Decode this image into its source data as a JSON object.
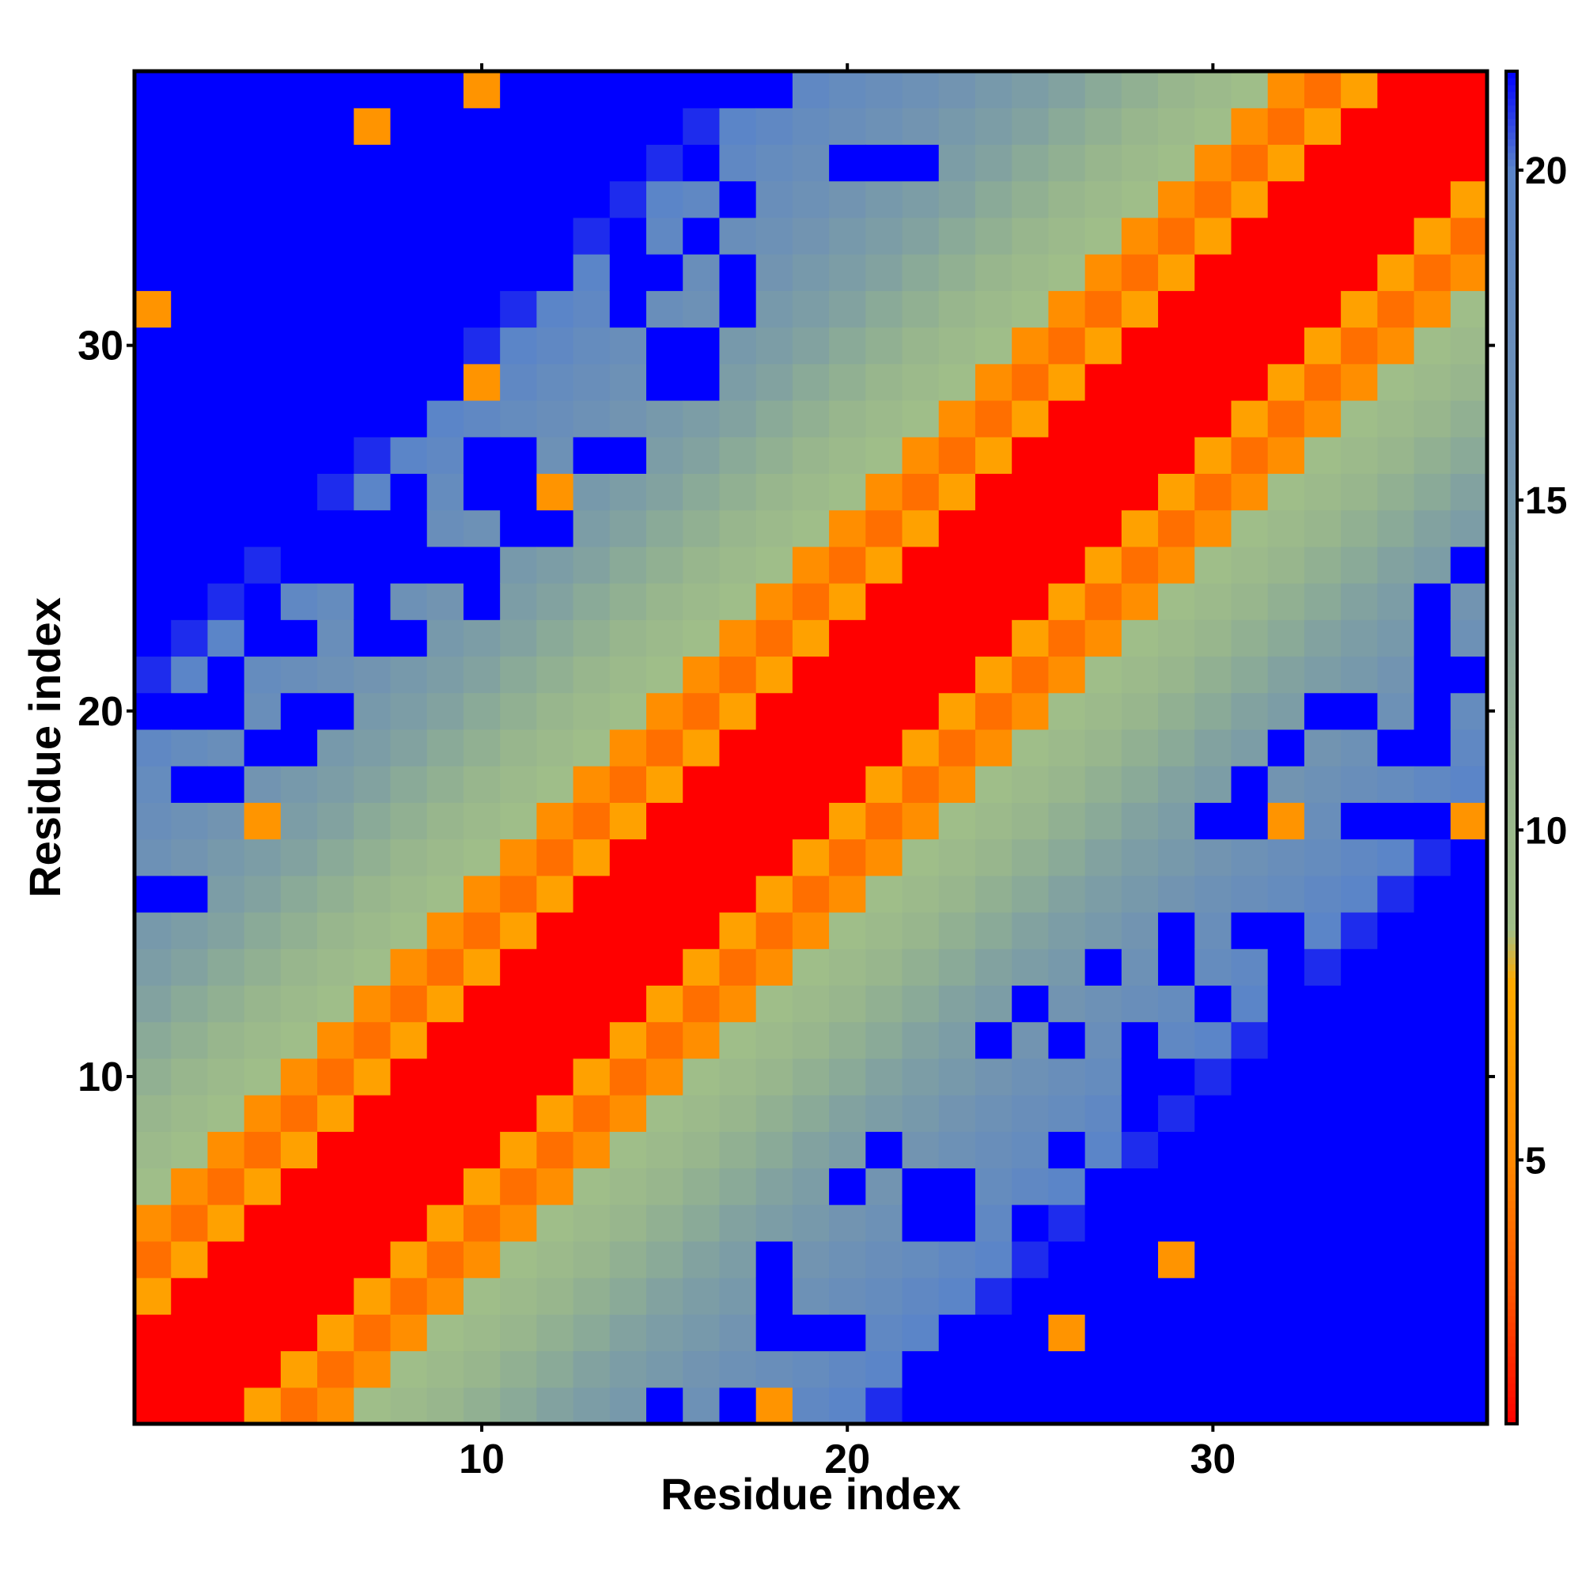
{
  "chart_data": {
    "type": "heatmap",
    "title": "",
    "xlabel": "Residue index",
    "ylabel": "Residue index",
    "n": 37,
    "xlim": [
      0.5,
      37.5
    ],
    "ylim": [
      0.5,
      37.5
    ],
    "x_ticks": [
      10,
      20,
      30
    ],
    "x_tick_labels": [
      "10",
      "20",
      "30"
    ],
    "y_ticks": [
      10,
      20,
      30
    ],
    "y_tick_labels": [
      "10",
      "20",
      "30"
    ],
    "colorbar": {
      "range": [
        1,
        21.5
      ],
      "ticks": [
        5,
        10,
        15,
        20
      ],
      "tick_labels": [
        "5",
        "10",
        "15",
        "20"
      ],
      "gradient": [
        {
          "value": 1.0,
          "color": "#ff0000"
        },
        {
          "value": 3.0,
          "color": "#ff5500"
        },
        {
          "value": 5.0,
          "color": "#ff8800"
        },
        {
          "value": 7.7,
          "color": "#ffaa00"
        },
        {
          "value": 8.5,
          "color": "#a0bf88"
        },
        {
          "value": 11.0,
          "color": "#96b48e"
        },
        {
          "value": 13.5,
          "color": "#7fa0a2"
        },
        {
          "value": 16.0,
          "color": "#6f92b4"
        },
        {
          "value": 20.0,
          "color": "#5b85c8"
        },
        {
          "value": 21.5,
          "color": "#0000ff"
        }
      ]
    },
    "grid": false,
    "legend": "colorbar-right",
    "distance_model": {
      "description": "Residue-residue distance map; values estimated from the color scale",
      "diagonal_band": [
        {
          "offset": 0,
          "value": 1.0
        },
        {
          "offset": 1,
          "value": 1.0
        },
        {
          "offset": 2,
          "value": 1.0
        },
        {
          "offset": 3,
          "value": 7.0
        },
        {
          "offset": 4,
          "value": 4.0
        },
        {
          "offset": 5,
          "value": 5.5
        },
        {
          "offset": 6,
          "value": 8.8
        },
        {
          "offset": 7,
          "value": 9.6
        },
        {
          "offset": 8,
          "value": 10.5
        },
        {
          "offset": 9,
          "value": 11.5
        },
        {
          "offset": 10,
          "value": 12.3
        },
        {
          "offset": 11,
          "value": 13.2
        },
        {
          "offset": 12,
          "value": 14.0
        },
        {
          "offset": 13,
          "value": 14.8
        },
        {
          "offset": 14,
          "value": 15.6
        },
        {
          "offset": 15,
          "value": 16.4
        },
        {
          "offset": 16,
          "value": 17.2
        },
        {
          "offset": 17,
          "value": 18.0
        },
        {
          "offset": 18,
          "value": 19.0
        },
        {
          "offset": 19,
          "value": 20.0
        },
        {
          "offset": 20,
          "value": 21.0
        }
      ],
      "far_value": 21.5
    }
  }
}
